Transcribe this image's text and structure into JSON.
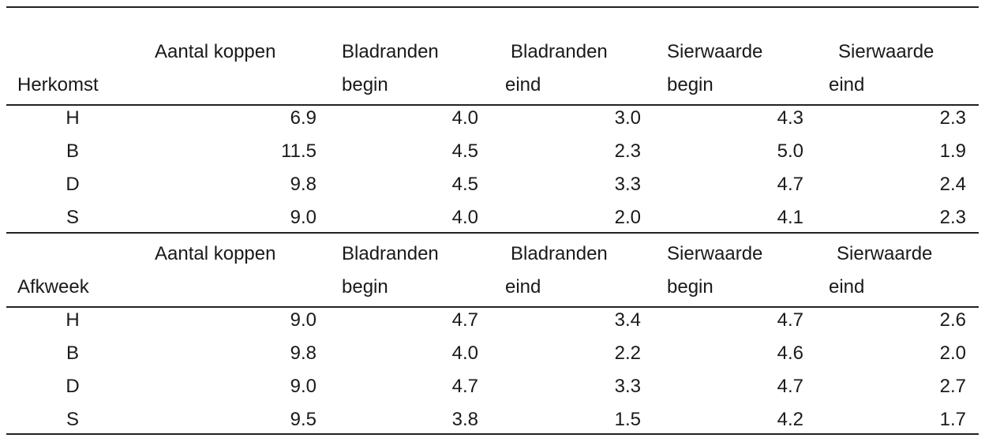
{
  "sections": [
    {
      "headers": [
        "Herkomst",
        "Aantal koppen",
        "Bladranden",
        "begin",
        "Bladranden",
        "eind",
        "Sierwaarde",
        "begin",
        "Sierwaarde",
        "eind"
      ],
      "rows": [
        {
          "label": "H",
          "values": [
            "6.9",
            "4.0",
            "3.0",
            "4.3",
            "2.3"
          ]
        },
        {
          "label": "B",
          "values": [
            "11.5",
            "4.5",
            "2.3",
            "5.0",
            "1.9"
          ]
        },
        {
          "label": "D",
          "values": [
            "9.8",
            "4.5",
            "3.3",
            "4.7",
            "2.4"
          ]
        },
        {
          "label": "S",
          "values": [
            "9.0",
            "4.0",
            "2.0",
            "4.1",
            "2.3"
          ]
        }
      ]
    },
    {
      "headers": [
        "Afkweek",
        "Aantal koppen",
        "Bladranden",
        "begin",
        "Bladranden",
        "eind",
        "Sierwaarde",
        "begin",
        "Sierwaarde",
        "eind"
      ],
      "rows": [
        {
          "label": "H",
          "values": [
            "9.0",
            "4.7",
            "3.4",
            "4.7",
            "2.6"
          ]
        },
        {
          "label": "B",
          "values": [
            "9.8",
            "4.0",
            "2.2",
            "4.6",
            "2.0"
          ]
        },
        {
          "label": "D",
          "values": [
            "9.0",
            "4.7",
            "3.3",
            "4.7",
            "2.7"
          ]
        },
        {
          "label": "S",
          "values": [
            "9.5",
            "3.8",
            "1.5",
            "4.2",
            "1.7"
          ]
        }
      ]
    }
  ]
}
